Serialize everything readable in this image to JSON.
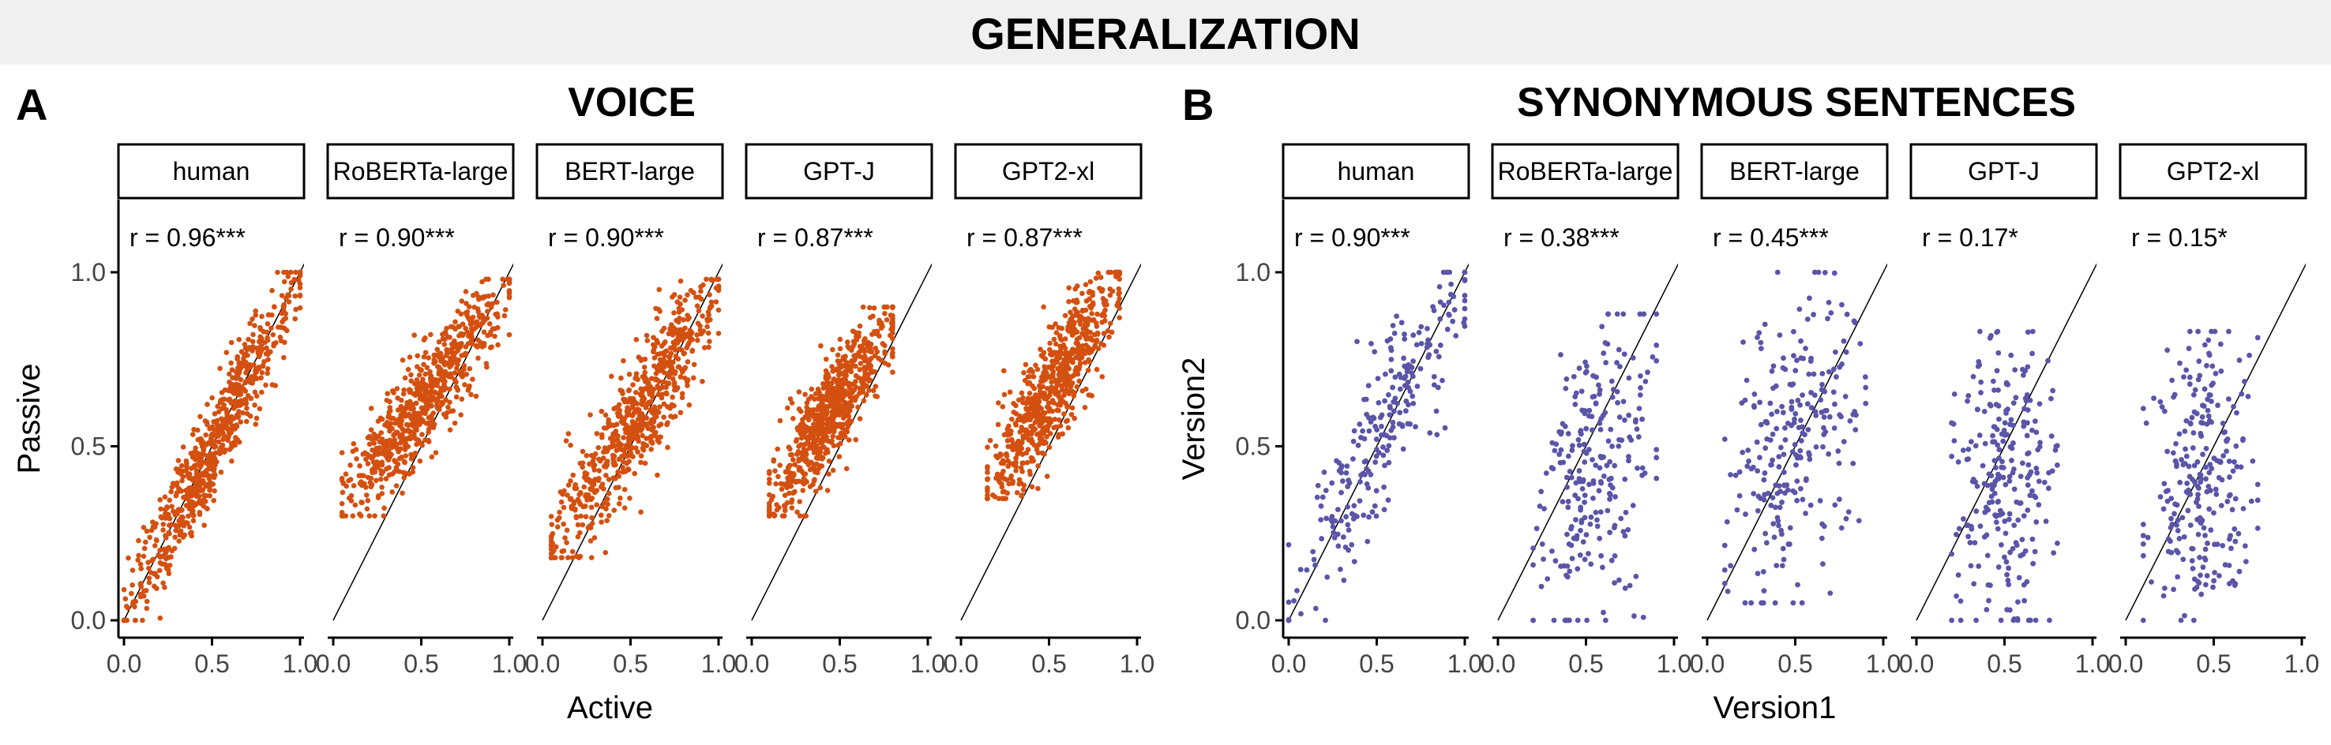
{
  "figure_title": "GENERALIZATION",
  "colors": {
    "voice": "#d45010",
    "synonymous": "#5b55a8"
  },
  "chart_data": [
    {
      "panel_letter": "A",
      "title": "VOICE",
      "type": "scatter",
      "xlabel": "Active",
      "ylabel": "Passive",
      "xlim": [
        0,
        1
      ],
      "ylim": [
        0,
        1
      ],
      "xticks": [
        "0.0",
        "0.5",
        "1.0"
      ],
      "yticks": [
        "0.0",
        "0.5",
        "1.0"
      ],
      "reference_line": "y = x",
      "grid": false,
      "color": "#d45010",
      "facets": [
        {
          "name": "human",
          "r_label": "r = 0.96***",
          "n_points": 700,
          "x_range": [
            0.0,
            1.0
          ],
          "y_range": [
            0.0,
            1.0
          ],
          "r": 0.96,
          "y_offset": 0.0
        },
        {
          "name": "RoBERTa-large",
          "r_label": "r = 0.90***",
          "n_points": 700,
          "x_range": [
            0.05,
            1.0
          ],
          "y_range": [
            0.3,
            0.98
          ],
          "r": 0.9,
          "y_offset": 0.0
        },
        {
          "name": "BERT-large",
          "r_label": "r = 0.90***",
          "n_points": 700,
          "x_range": [
            0.05,
            1.0
          ],
          "y_range": [
            0.18,
            0.98
          ],
          "r": 0.9,
          "y_offset": 0.0
        },
        {
          "name": "GPT-J",
          "r_label": "r = 0.87***",
          "n_points": 700,
          "x_range": [
            0.1,
            0.8
          ],
          "y_range": [
            0.3,
            0.9
          ],
          "r": 0.87,
          "y_offset": 0.0
        },
        {
          "name": "GPT2-xl",
          "r_label": "r = 0.87***",
          "n_points": 700,
          "x_range": [
            0.15,
            0.9
          ],
          "y_range": [
            0.35,
            1.0
          ],
          "r": 0.87,
          "y_offset": 0.0
        }
      ]
    },
    {
      "panel_letter": "B",
      "title": "SYNONYMOUS SENTENCES",
      "type": "scatter",
      "xlabel": "Version1",
      "ylabel": "Version2",
      "xlim": [
        0,
        1
      ],
      "ylim": [
        0,
        1
      ],
      "xticks": [
        "0.0",
        "0.5",
        "1.0"
      ],
      "yticks": [
        "0.0",
        "0.5",
        "1.0"
      ],
      "reference_line": "y = x",
      "grid": false,
      "color": "#5b55a8",
      "facets": [
        {
          "name": "human",
          "r_label": "r = 0.90***",
          "n_points": 250,
          "x_range": [
            0.0,
            1.0
          ],
          "y_range": [
            0.0,
            1.0
          ],
          "r": 0.9
        },
        {
          "name": "RoBERTa-large",
          "r_label": "r = 0.38***",
          "n_points": 250,
          "x_range": [
            0.2,
            0.9
          ],
          "y_range": [
            0.0,
            0.88
          ],
          "r": 0.38
        },
        {
          "name": "BERT-large",
          "r_label": "r = 0.45***",
          "n_points": 250,
          "x_range": [
            0.1,
            0.9
          ],
          "y_range": [
            0.05,
            1.0
          ],
          "r": 0.45
        },
        {
          "name": "GPT-J",
          "r_label": "r = 0.17*",
          "n_points": 250,
          "x_range": [
            0.2,
            0.8
          ],
          "y_range": [
            0.0,
            0.83
          ],
          "r": 0.17
        },
        {
          "name": "GPT2-xl",
          "r_label": "r = 0.15*",
          "n_points": 250,
          "x_range": [
            0.1,
            0.75
          ],
          "y_range": [
            0.0,
            0.83
          ],
          "r": 0.15
        }
      ]
    }
  ]
}
